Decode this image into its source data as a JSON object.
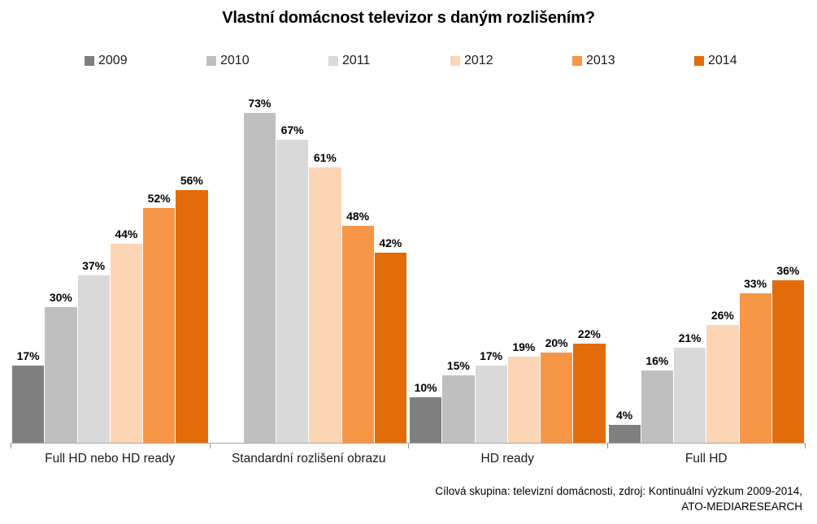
{
  "page": {
    "title": "Vlastní domácnost televizor s daným rozlišením?",
    "footer_line1": "Cílová skupina: televizní domácnosti, zdroj: Kontinuální výzkum 2009-2014,",
    "footer_line2": "ATO-MEDIARESEARCH"
  },
  "chart_data": {
    "type": "bar",
    "title": "Vlastní domácnost televizor s daným rozlišením?",
    "categories": [
      "Full HD nebo HD ready",
      "Standardní rozlišení obrazu",
      "HD ready",
      "Full HD"
    ],
    "series": [
      {
        "name": "2009",
        "color": "#7f7f7f",
        "values": [
          17,
          null,
          10,
          4
        ]
      },
      {
        "name": "2010",
        "color": "#bfbfbf",
        "values": [
          30,
          73,
          15,
          16
        ]
      },
      {
        "name": "2011",
        "color": "#d9d9d9",
        "values": [
          37,
          67,
          17,
          21
        ]
      },
      {
        "name": "2012",
        "color": "#fcd5b4",
        "values": [
          44,
          61,
          19,
          26
        ]
      },
      {
        "name": "2013",
        "color": "#f79646",
        "values": [
          52,
          48,
          20,
          33
        ]
      },
      {
        "name": "2014",
        "color": "#e36c0a",
        "values": [
          56,
          42,
          22,
          36
        ]
      }
    ],
    "value_suffix": "%",
    "ylim": [
      0,
      80
    ],
    "grid": false,
    "legend_position": "top",
    "axis_color": "#a6a6a6",
    "tick_color": "#8c8c8c",
    "footnote": "Cílová skupina: televizní domácnosti, zdroj: Kontinuální výzkum 2009-2014, ATO-MEDIARESEARCH"
  }
}
